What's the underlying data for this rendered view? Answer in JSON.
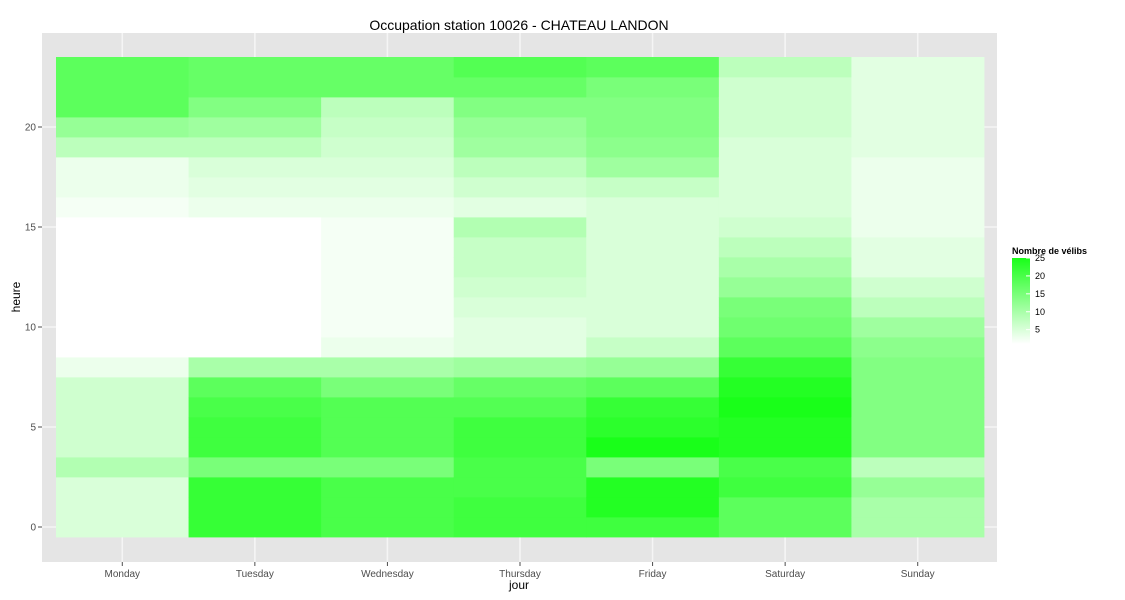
{
  "chart_data": {
    "type": "heatmap",
    "title": "Occupation station 10026 - CHATEAU LANDON",
    "xlabel": "jour",
    "ylabel": "heure",
    "x": [
      "Monday",
      "Tuesday",
      "Wednesday",
      "Thursday",
      "Friday",
      "Saturday",
      "Sunday"
    ],
    "y": [
      0,
      1,
      2,
      3,
      4,
      5,
      6,
      7,
      8,
      9,
      10,
      11,
      12,
      13,
      14,
      15,
      16,
      17,
      18,
      19,
      20,
      21,
      22,
      23
    ],
    "y_ticks": [
      0,
      5,
      10,
      15,
      20
    ],
    "ylim": [
      0,
      23
    ],
    "grid": true,
    "values_by_day": {
      "Monday": [
        5,
        5,
        5,
        9,
        6,
        6,
        6,
        6,
        3,
        1,
        1,
        1,
        1,
        1,
        1,
        1,
        2,
        3,
        3,
        8,
        12,
        18,
        18,
        18
      ],
      "Tuesday": [
        22,
        22,
        22,
        15,
        21,
        21,
        20,
        18,
        10,
        1,
        1,
        1,
        1,
        1,
        1,
        1,
        3,
        4,
        5,
        8,
        11,
        14,
        17,
        17
      ],
      "Wednesday": [
        20,
        20,
        20,
        15,
        19,
        19,
        19,
        15,
        10,
        3,
        2,
        2,
        2,
        2,
        2,
        2,
        3,
        4,
        5,
        6,
        7,
        8,
        17,
        17
      ],
      "Thursday": [
        21,
        21,
        20,
        20,
        21,
        21,
        19,
        17,
        11,
        4,
        4,
        5,
        6,
        7,
        7,
        9,
        4,
        6,
        8,
        11,
        12,
        14,
        17,
        19
      ],
      "Friday": [
        21,
        24,
        24,
        15,
        25,
        23,
        22,
        18,
        12,
        7,
        5,
        5,
        5,
        5,
        5,
        5,
        5,
        7,
        11,
        13,
        14,
        14,
        15,
        18
      ],
      "Saturday": [
        18,
        18,
        21,
        20,
        24,
        24,
        25,
        24,
        22,
        18,
        16,
        15,
        12,
        10,
        8,
        6,
        5,
        5,
        5,
        5,
        6,
        6,
        6,
        8
      ],
      "Sunday": [
        10,
        10,
        12,
        8,
        14,
        14,
        14,
        14,
        14,
        13,
        11,
        8,
        6,
        4,
        4,
        3,
        3,
        3,
        3,
        4,
        4,
        4,
        4,
        4
      ]
    },
    "legend": {
      "title": "Nombre de vélibs",
      "labels": [
        "25",
        "20",
        "15",
        "10",
        "5"
      ],
      "min": 1,
      "max": 25,
      "low_color": "#ffffff",
      "high_color": "#19ff19",
      "placement": "right"
    },
    "panel_background": "#e5e5e5",
    "grid_color": "#f5f5f5"
  }
}
